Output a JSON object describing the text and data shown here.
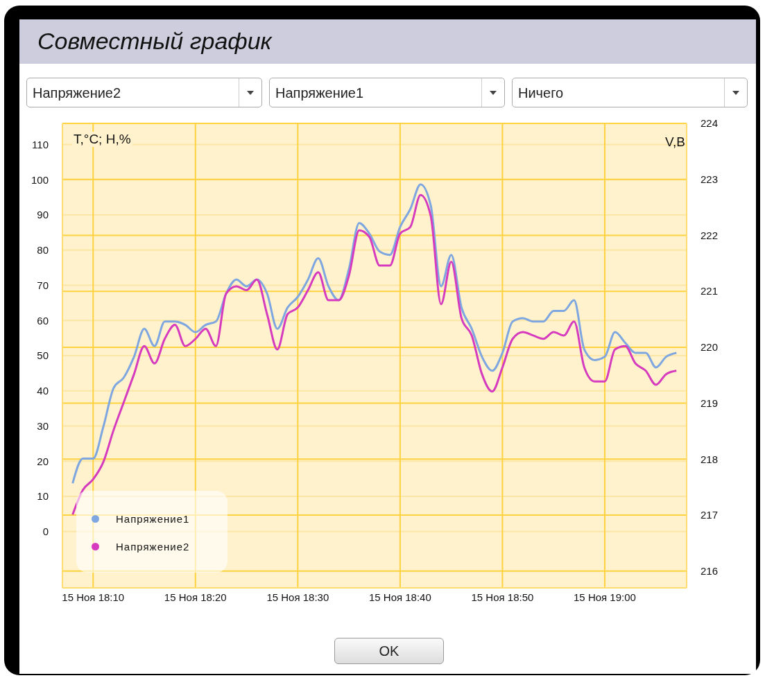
{
  "chart_data": {
    "type": "line",
    "title": "Совместный график",
    "ylabel": "T,°C; H,%",
    "y2label": "V,B",
    "annotations": [
      "Напряжение2",
      "Напряжение1",
      "Ничего",
      "OK"
    ],
    "x": [
      "--11-15T18:08",
      "--11-15T18:09",
      "--11-15T18:10",
      "--11-15T18:11",
      "--11-15T18:12",
      "--11-15T18:13",
      "--11-15T18:14",
      "--11-15T18:15",
      "--11-15T18:16",
      "--11-15T18:17",
      "--11-15T18:18",
      "--11-15T18:19",
      "--11-15T18:20",
      "--11-15T18:21",
      "--11-15T18:22",
      "--11-15T18:23",
      "--11-15T18:24",
      "--11-15T18:25",
      "--11-15T18:26",
      "--11-15T18:27",
      "--11-15T18:28",
      "--11-15T18:29",
      "--11-15T18:30",
      "--11-15T18:31",
      "--11-15T18:32",
      "--11-15T18:33",
      "--11-15T18:34",
      "--11-15T18:35",
      "--11-15T18:36",
      "--11-15T18:37",
      "--11-15T18:38",
      "--11-15T18:39",
      "--11-15T18:40",
      "--11-15T18:41",
      "--11-15T18:42",
      "--11-15T18:43",
      "--11-15T18:44",
      "--11-15T18:45",
      "--11-15T18:46",
      "--11-15T18:47",
      "--11-15T18:48",
      "--11-15T18:49",
      "--11-15T18:50",
      "--11-15T18:51",
      "--11-15T18:52",
      "--11-15T18:53",
      "--11-15T18:54",
      "--11-15T18:55",
      "--11-15T18:56",
      "--11-15T18:57",
      "--11-15T18:58",
      "--11-15T18:59",
      "--11-15T19:00",
      "--11-15T19:01",
      "--11-15T19:02",
      "--11-15T19:03",
      "--11-15T19:04",
      "--11-15T19:05",
      "--11-15T19:06",
      "--11-15T19:07"
    ],
    "series": [
      {
        "name": "Напряжение1",
        "color": "#7ea6e0",
        "axis": "y2",
        "values": [
          217.57,
          218.01,
          218.01,
          218.58,
          219.27,
          219.46,
          219.83,
          220.33,
          220.02,
          220.46,
          220.46,
          220.4,
          220.27,
          220.4,
          220.46,
          220.96,
          221.21,
          221.09,
          221.21,
          220.96,
          220.33,
          220.71,
          220.9,
          221.21,
          221.59,
          221.09,
          220.84,
          221.4,
          222.22,
          222.03,
          221.71,
          221.65,
          222.15,
          222.47,
          222.91,
          222.53,
          221.09,
          221.65,
          220.71,
          220.33,
          219.83,
          219.58,
          219.9,
          220.46,
          220.52,
          220.46,
          220.46,
          220.65,
          220.65,
          220.84,
          219.96,
          219.77,
          219.83,
          220.27,
          220.08,
          219.9,
          219.9,
          219.64,
          219.83,
          219.9
        ]
      },
      {
        "name": "Напряжение2",
        "color": "#d63bbf",
        "axis": "y2",
        "values": [
          217.01,
          217.45,
          217.64,
          217.95,
          218.52,
          219.02,
          219.52,
          220.02,
          219.71,
          220.15,
          220.4,
          220.02,
          220.15,
          220.33,
          220.02,
          220.96,
          221.09,
          221.02,
          221.21,
          220.59,
          219.96,
          220.59,
          220.71,
          221.02,
          221.34,
          220.84,
          220.84,
          221.28,
          222.09,
          221.97,
          221.46,
          221.46,
          222.03,
          222.15,
          222.72,
          222.34,
          220.77,
          221.53,
          220.52,
          220.21,
          219.52,
          219.21,
          219.64,
          220.15,
          220.27,
          220.21,
          220.15,
          220.27,
          220.21,
          220.46,
          219.64,
          219.39,
          219.39,
          219.96,
          220.02,
          219.71,
          219.58,
          219.33,
          219.52,
          219.58
        ]
      }
    ],
    "xlim": [
      "--11-15T18:07",
      "--11-15T19:08"
    ],
    "xticks": [
      {
        "value": "--11-15T18:10",
        "label": "15 Ноя 18:10"
      },
      {
        "value": "--11-15T18:20",
        "label": "15 Ноя 18:20"
      },
      {
        "value": "--11-15T18:30",
        "label": "15 Ноя 18:30"
      },
      {
        "value": "--11-15T18:40",
        "label": "15 Ноя 18:40"
      },
      {
        "value": "--11-15T18:50",
        "label": "15 Ноя 18:50"
      },
      {
        "value": "--11-15T19:00",
        "label": "15 Ноя 19:00"
      }
    ],
    "ylim": [
      -16,
      116
    ],
    "yticks": [
      0,
      10,
      20,
      30,
      40,
      50,
      60,
      70,
      80,
      90,
      100,
      110
    ],
    "y2lim": [
      215.7,
      224
    ],
    "y2ticks": [
      216,
      217,
      218,
      219,
      220,
      221,
      222,
      223,
      224
    ],
    "grid": true,
    "legend": "bottom left"
  }
}
